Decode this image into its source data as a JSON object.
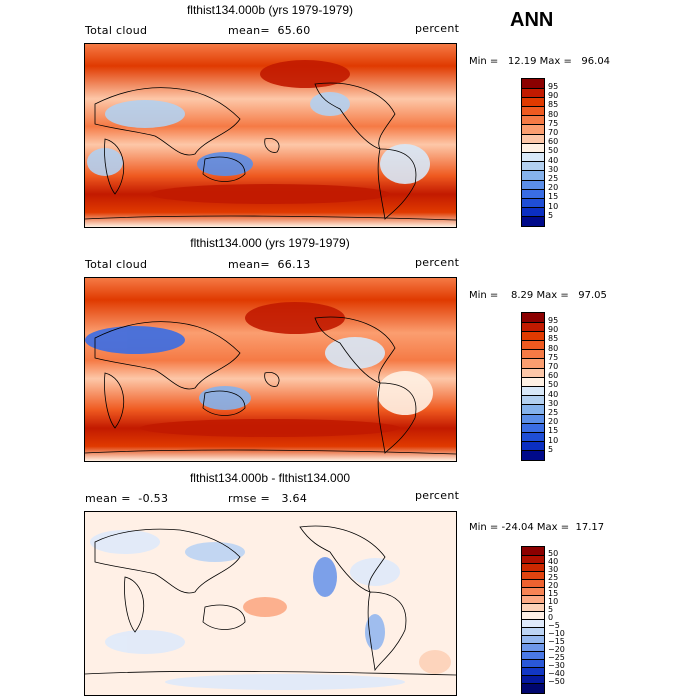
{
  "season": "ANN",
  "panels": [
    {
      "title": "flthist134.000b (yrs 1979-1979)",
      "variable": "Total cloud",
      "stat_line": "mean=  65.60",
      "units": "percent",
      "minmax": "Min =   12.19 Max =   96.04"
    },
    {
      "title": "flthist134.000 (yrs 1979-1979)",
      "variable": "Total cloud",
      "stat_line": "mean=  66.13",
      "units": "percent",
      "minmax": "Min =    8.29 Max =   97.05"
    },
    {
      "title": "flthist134.000b - flthist134.000",
      "variable": "mean =  -0.53",
      "stat_line": "rmse =   3.64",
      "units": "percent",
      "minmax": "Min = -24.04 Max =  17.17"
    }
  ],
  "chart_data": [
    {
      "type": "heatmap",
      "title": "flthist134.000b (yrs 1979-1979)",
      "variable": "Total cloud",
      "units": "percent",
      "mean": 65.6,
      "min": 12.19,
      "max": 96.04,
      "contour_levels": [
        "95",
        "90",
        "85",
        "80",
        "75",
        "70",
        "60",
        "50",
        "40",
        "30",
        "25",
        "20",
        "15",
        "10",
        "5"
      ],
      "colors": [
        "#8b0000",
        "#c21a00",
        "#e03a00",
        "#ef5a20",
        "#f57a45",
        "#fb9e70",
        "#fdc7a8",
        "#fff1e4",
        "#d8e8f8",
        "#b3d0f0",
        "#85b2ec",
        "#5b8ee8",
        "#3a6de4",
        "#1f4ed6",
        "#0b2fc2",
        "#000a8a"
      ]
    },
    {
      "type": "heatmap",
      "title": "flthist134.000 (yrs 1979-1979)",
      "variable": "Total cloud",
      "units": "percent",
      "mean": 66.13,
      "min": 8.29,
      "max": 97.05,
      "contour_levels": [
        "95",
        "90",
        "85",
        "80",
        "75",
        "70",
        "60",
        "50",
        "40",
        "30",
        "25",
        "20",
        "15",
        "10",
        "5"
      ],
      "colors": [
        "#8b0000",
        "#c21a00",
        "#e03a00",
        "#ef5a20",
        "#f57a45",
        "#fb9e70",
        "#fdc7a8",
        "#fff1e4",
        "#d8e8f8",
        "#b3d0f0",
        "#85b2ec",
        "#5b8ee8",
        "#3a6de4",
        "#1f4ed6",
        "#0b2fc2",
        "#000a8a"
      ]
    },
    {
      "type": "heatmap",
      "title": "flthist134.000b - flthist134.000",
      "units": "percent",
      "mean": -0.53,
      "rmse": 3.64,
      "min": -24.04,
      "max": 17.17,
      "contour_levels": [
        "50",
        "40",
        "30",
        "25",
        "20",
        "15",
        "10",
        "5",
        "0",
        "−5",
        "−10",
        "−15",
        "−20",
        "−25",
        "−30",
        "−40",
        "−50"
      ],
      "colors": [
        "#8b0000",
        "#b01000",
        "#cc2800",
        "#e04410",
        "#ee6230",
        "#f78455",
        "#fcaa85",
        "#fdd2b8",
        "#fff0e6",
        "#dfeafb",
        "#bcd4f4",
        "#95b8ef",
        "#6e98ea",
        "#4a79e6",
        "#2a58d8",
        "#1237c4",
        "#05199e",
        "#00066e"
      ]
    }
  ]
}
